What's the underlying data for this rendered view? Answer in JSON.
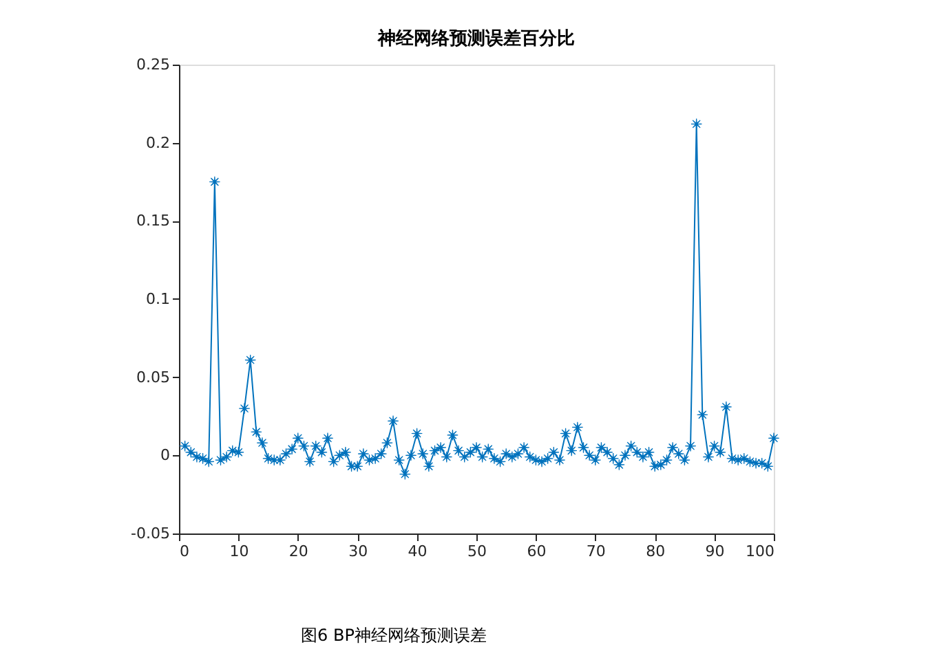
{
  "chart_data": {
    "type": "line",
    "title": "神经网络预测误差百分比",
    "annotations": [
      "图6 BP神经网络预测误差"
    ],
    "x": [
      1,
      2,
      3,
      4,
      5,
      6,
      7,
      8,
      9,
      10,
      11,
      12,
      13,
      14,
      15,
      16,
      17,
      18,
      19,
      20,
      21,
      22,
      23,
      24,
      25,
      26,
      27,
      28,
      29,
      30,
      31,
      32,
      33,
      34,
      35,
      36,
      37,
      38,
      39,
      40,
      41,
      42,
      43,
      44,
      45,
      46,
      47,
      48,
      49,
      50,
      51,
      52,
      53,
      54,
      55,
      56,
      57,
      58,
      59,
      60,
      61,
      62,
      63,
      64,
      65,
      66,
      67,
      68,
      69,
      70,
      71,
      72,
      73,
      74,
      75,
      76,
      77,
      78,
      79,
      80,
      81,
      82,
      83,
      84,
      85,
      86,
      87,
      88,
      89,
      90,
      91,
      92,
      93,
      94,
      95,
      96,
      97,
      98,
      99,
      100
    ],
    "series": [
      {
        "color": "#0072bd",
        "values": [
          0.006,
          0.002,
          -0.001,
          -0.002,
          -0.004,
          0.175,
          -0.003,
          -0.001,
          0.003,
          0.002,
          0.03,
          0.061,
          0.015,
          0.008,
          -0.002,
          -0.003,
          -0.003,
          0.001,
          0.004,
          0.011,
          0.006,
          -0.004,
          0.006,
          0.002,
          0.011,
          -0.004,
          0.0,
          0.002,
          -0.007,
          -0.007,
          0.001,
          -0.003,
          -0.002,
          0.001,
          0.008,
          0.022,
          -0.003,
          -0.012,
          0.0,
          0.014,
          0.001,
          -0.007,
          0.003,
          0.005,
          -0.001,
          0.013,
          0.003,
          -0.001,
          0.002,
          0.005,
          -0.001,
          0.004,
          -0.002,
          -0.004,
          0.001,
          -0.001,
          0.001,
          0.005,
          -0.001,
          -0.003,
          -0.004,
          -0.002,
          0.002,
          -0.003,
          0.014,
          0.003,
          0.018,
          0.005,
          0.0,
          -0.003,
          0.005,
          0.002,
          -0.002,
          -0.006,
          0.0,
          0.006,
          0.002,
          -0.001,
          0.002,
          -0.007,
          -0.006,
          -0.003,
          0.005,
          0.001,
          -0.003,
          0.006,
          0.212,
          0.026,
          -0.001,
          0.006,
          0.002,
          0.031,
          -0.002,
          -0.003,
          -0.002,
          -0.004,
          -0.005,
          -0.005,
          -0.007,
          0.011
        ]
      }
    ],
    "xlim": [
      0,
      100
    ],
    "xticks": [
      0,
      10,
      20,
      30,
      40,
      50,
      60,
      70,
      80,
      90,
      100
    ],
    "ylim": [
      -0.05,
      0.25
    ],
    "yticks": [
      -0.05,
      0,
      0.05,
      0.1,
      0.15,
      0.2,
      0.25
    ],
    "grid": false,
    "marker": "star",
    "line_style": "solid"
  }
}
